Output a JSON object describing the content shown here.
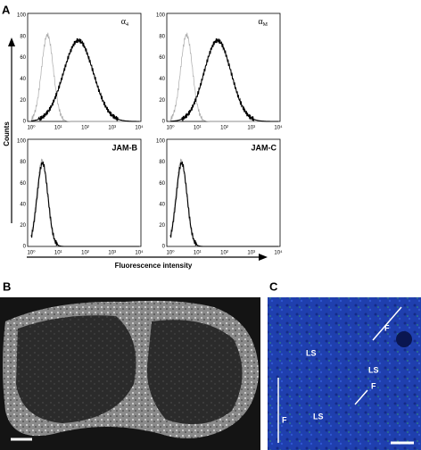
{
  "figure": {
    "panel_a": {
      "label": "A",
      "y_axis_label": "Counts",
      "x_axis_label": "Fluorescence intensity",
      "y_ticks": [
        "0",
        "20",
        "40",
        "60",
        "80",
        "100"
      ],
      "x_ticks": [
        "10⁰",
        "10¹",
        "10²",
        "10³",
        "10⁴"
      ],
      "plots": [
        {
          "symbol": "α",
          "subscript": "4"
        },
        {
          "symbol": "α",
          "subscript": "M"
        },
        {
          "title": "JAM-B"
        },
        {
          "title": "JAM-C"
        }
      ]
    },
    "panel_b": {
      "label": "B"
    },
    "panel_c": {
      "label": "C",
      "annotations": [
        "LS",
        "LS",
        "LS",
        "F",
        "F",
        "F"
      ]
    }
  }
}
